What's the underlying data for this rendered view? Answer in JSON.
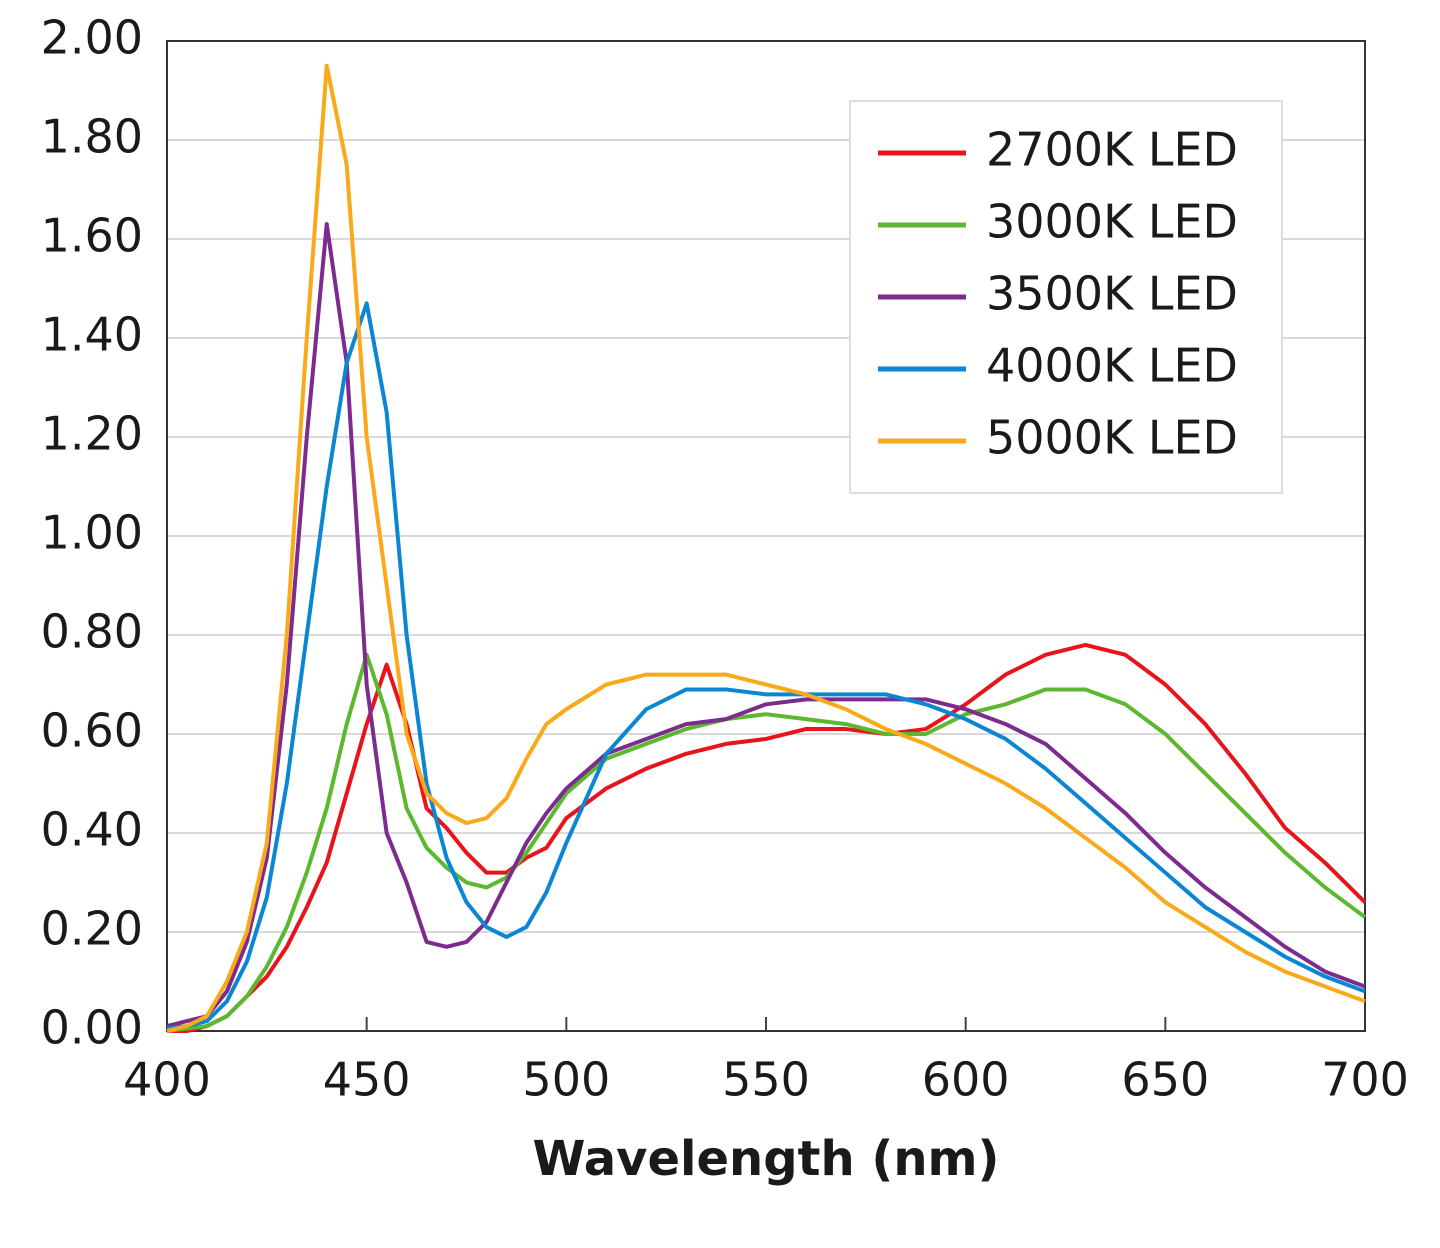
{
  "chart_data": {
    "type": "line",
    "x_label": "Wavelength (nm)",
    "x": [
      400,
      405,
      410,
      415,
      420,
      425,
      430,
      435,
      440,
      445,
      450,
      455,
      460,
      465,
      470,
      475,
      480,
      485,
      490,
      495,
      500,
      510,
      520,
      530,
      540,
      550,
      560,
      570,
      580,
      590,
      600,
      610,
      620,
      630,
      640,
      650,
      660,
      670,
      680,
      690,
      700
    ],
    "series": [
      {
        "name": "2700K LED",
        "color": "#e8131b",
        "values": [
          0,
          0,
          0.01,
          0.03,
          0.07,
          0.11,
          0.17,
          0.25,
          0.34,
          0.48,
          0.62,
          0.74,
          0.62,
          0.45,
          0.41,
          0.36,
          0.32,
          0.32,
          0.35,
          0.37,
          0.43,
          0.49,
          0.53,
          0.56,
          0.58,
          0.59,
          0.61,
          0.61,
          0.6,
          0.61,
          0.66,
          0.72,
          0.76,
          0.78,
          0.76,
          0.7,
          0.62,
          0.52,
          0.41,
          0.34,
          0.26
        ]
      },
      {
        "name": "3000K LED",
        "color": "#5cb82f",
        "values": [
          0,
          0.005,
          0.01,
          0.03,
          0.07,
          0.13,
          0.21,
          0.32,
          0.45,
          0.62,
          0.76,
          0.64,
          0.45,
          0.37,
          0.33,
          0.3,
          0.29,
          0.31,
          0.36,
          0.42,
          0.48,
          0.55,
          0.58,
          0.61,
          0.63,
          0.64,
          0.63,
          0.62,
          0.6,
          0.6,
          0.64,
          0.66,
          0.69,
          0.69,
          0.66,
          0.6,
          0.52,
          0.44,
          0.36,
          0.29,
          0.23
        ]
      },
      {
        "name": "3500K LED",
        "color": "#7d2b8f",
        "values": [
          0.01,
          0.02,
          0.03,
          0.08,
          0.18,
          0.35,
          0.7,
          1.2,
          1.63,
          1.35,
          0.7,
          0.4,
          0.3,
          0.18,
          0.17,
          0.18,
          0.22,
          0.3,
          0.38,
          0.44,
          0.49,
          0.56,
          0.59,
          0.62,
          0.63,
          0.66,
          0.67,
          0.67,
          0.67,
          0.67,
          0.65,
          0.62,
          0.58,
          0.51,
          0.44,
          0.36,
          0.29,
          0.23,
          0.17,
          0.12,
          0.09
        ]
      },
      {
        "name": "4000K LED",
        "color": "#0a86d4",
        "values": [
          0.005,
          0.01,
          0.02,
          0.06,
          0.14,
          0.27,
          0.5,
          0.8,
          1.1,
          1.35,
          1.47,
          1.25,
          0.8,
          0.5,
          0.35,
          0.26,
          0.21,
          0.19,
          0.21,
          0.28,
          0.38,
          0.56,
          0.65,
          0.69,
          0.69,
          0.68,
          0.68,
          0.68,
          0.68,
          0.66,
          0.63,
          0.59,
          0.53,
          0.46,
          0.39,
          0.32,
          0.25,
          0.2,
          0.15,
          0.11,
          0.08
        ]
      },
      {
        "name": "5000K LED",
        "color": "#f9a91a",
        "values": [
          0,
          0.01,
          0.03,
          0.1,
          0.2,
          0.38,
          0.8,
          1.4,
          1.95,
          1.75,
          1.2,
          0.9,
          0.6,
          0.48,
          0.44,
          0.42,
          0.43,
          0.47,
          0.55,
          0.62,
          0.65,
          0.7,
          0.72,
          0.72,
          0.72,
          0.7,
          0.68,
          0.65,
          0.61,
          0.58,
          0.54,
          0.5,
          0.45,
          0.39,
          0.33,
          0.26,
          0.21,
          0.16,
          0.12,
          0.09,
          0.06
        ]
      }
    ],
    "xlim": [
      400,
      700
    ],
    "xticks": [
      400,
      450,
      500,
      550,
      600,
      650,
      700
    ],
    "ylim": [
      0,
      2
    ],
    "yticks": [
      {
        "value": 0,
        "label": "0.00"
      },
      {
        "value": 0.2,
        "label": "0.20"
      },
      {
        "value": 0.4,
        "label": "0.40"
      },
      {
        "value": 0.6,
        "label": "0.60"
      },
      {
        "value": 0.8,
        "label": "0.80"
      },
      {
        "value": 1,
        "label": "1.00"
      },
      {
        "value": 1.2,
        "label": "1.20"
      },
      {
        "value": 1.4,
        "label": "1.40"
      },
      {
        "value": 1.6,
        "label": "1.60"
      },
      {
        "value": 1.8,
        "label": "1.80"
      },
      {
        "value": 2,
        "label": "2.00"
      }
    ],
    "grid": true,
    "legend": "upper right"
  }
}
